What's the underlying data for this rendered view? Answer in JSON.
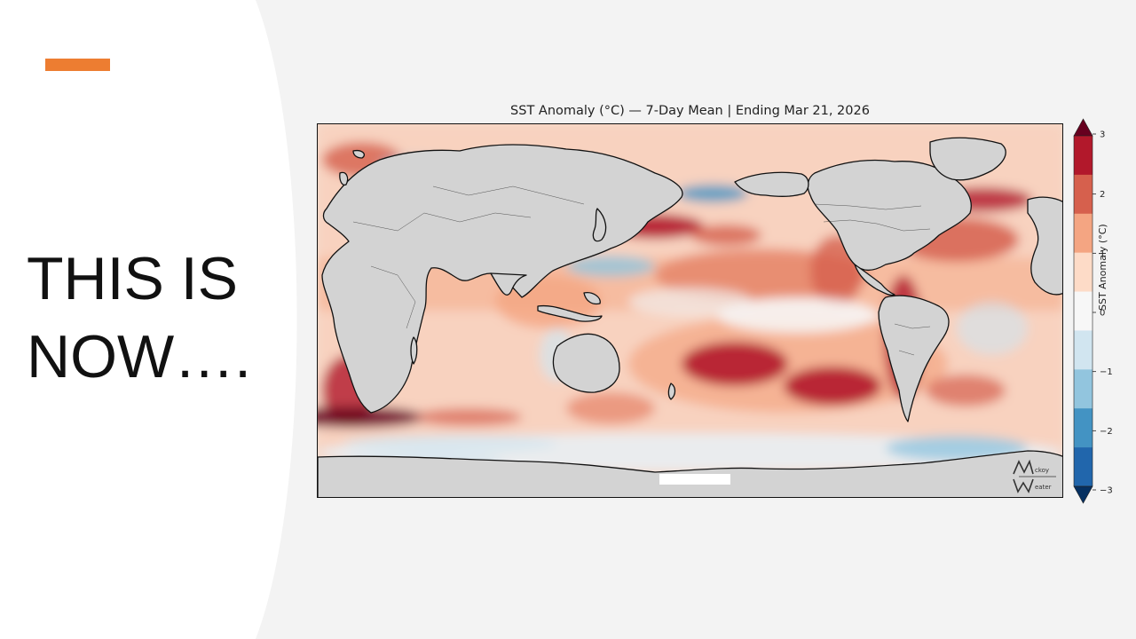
{
  "slide": {
    "headline_line1": "THIS IS",
    "headline_line2": "NOW….",
    "accent_color": "#ed7d31"
  },
  "map": {
    "title": "SST Anomaly (°C) — 7-Day Mean | Ending Mar 21, 2026",
    "land_color": "#d3d3d3",
    "colorbar": {
      "label": "SST Anomaly (°C)",
      "ticks": [
        "3",
        "2",
        "1",
        "0",
        "−1",
        "−2",
        "−3"
      ],
      "colors": [
        "#67001f",
        "#b2182b",
        "#d6604d",
        "#f4a582",
        "#fddbc7",
        "#f7f7f7",
        "#d1e5f0",
        "#92c5de",
        "#4393c3",
        "#2166ac",
        "#053061"
      ]
    },
    "watermark": {
      "line1": "ckoy",
      "line2": "eater"
    }
  }
}
